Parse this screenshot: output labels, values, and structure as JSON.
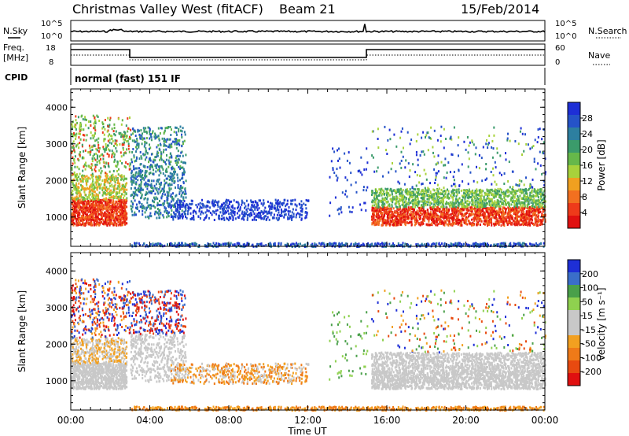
{
  "header": {
    "station": "Christmas Valley West (fitACF)",
    "beam": "Beam 21",
    "date": "15/Feb/2014"
  },
  "panels": {
    "nsky_label": "N.Sky",
    "nsearch_label": "N.Search",
    "noise_tick_top": "10^5",
    "noise_tick_bottom": "10^0",
    "noise_tick_top_right": "10^5",
    "noise_tick_bottom_right": "10^0",
    "freq_label": "Freq.",
    "freq_unit": "[MHz]",
    "freq_ticks": [
      "18",
      "8"
    ],
    "nave_label": "Nave",
    "nave_ticks": [
      "60",
      "0"
    ],
    "cpid_label": "CPID",
    "cpid_text": "normal (fast) 151 IF"
  },
  "colors": {
    "power": [
      "#1e2fd6",
      "#2553c8",
      "#2d7fa0",
      "#3b9b6b",
      "#66b84a",
      "#a8d23b",
      "#f0a020",
      "#f27020",
      "#ee3a1a",
      "#e01010"
    ],
    "velocity": [
      "#1e2fd6",
      "#3a6ec9",
      "#4aa04a",
      "#8fd14f",
      "#c8c8c8",
      "#c8c8c8",
      "#f2a020",
      "#ef7a18",
      "#e84a10",
      "#e01010"
    ]
  },
  "chart_data": [
    {
      "type": "heatmap",
      "name": "power",
      "ylabel": "Slant Range [km]",
      "xlabel": "Time UT",
      "x_ticks": [
        "00:00",
        "04:00",
        "08:00",
        "12:00",
        "16:00",
        "20:00",
        "00:00"
      ],
      "y_ticks": [
        "1000",
        "2000",
        "3000",
        "4000"
      ],
      "ylim": [
        200,
        4500
      ],
      "xlim_hours": [
        0,
        24
      ],
      "colorbar_label": "Power [dB]",
      "colorbar_ticks": [
        "28",
        "24",
        "20",
        "16",
        "12",
        "8",
        "4"
      ]
    },
    {
      "type": "heatmap",
      "name": "velocity",
      "ylabel": "Slant Range [km]",
      "xlabel": "Time UT",
      "x_ticks": [
        "00:00",
        "04:00",
        "08:00",
        "12:00",
        "16:00",
        "20:00",
        "00:00"
      ],
      "y_ticks": [
        "1000",
        "2000",
        "3000",
        "4000"
      ],
      "ylim": [
        200,
        4500
      ],
      "xlim_hours": [
        0,
        24
      ],
      "colorbar_label": "Velocity [m s⁻¹]",
      "colorbar_ticks": [
        "200",
        "100",
        "50",
        "15",
        "-15",
        "-50",
        "-100",
        "-200"
      ]
    }
  ]
}
